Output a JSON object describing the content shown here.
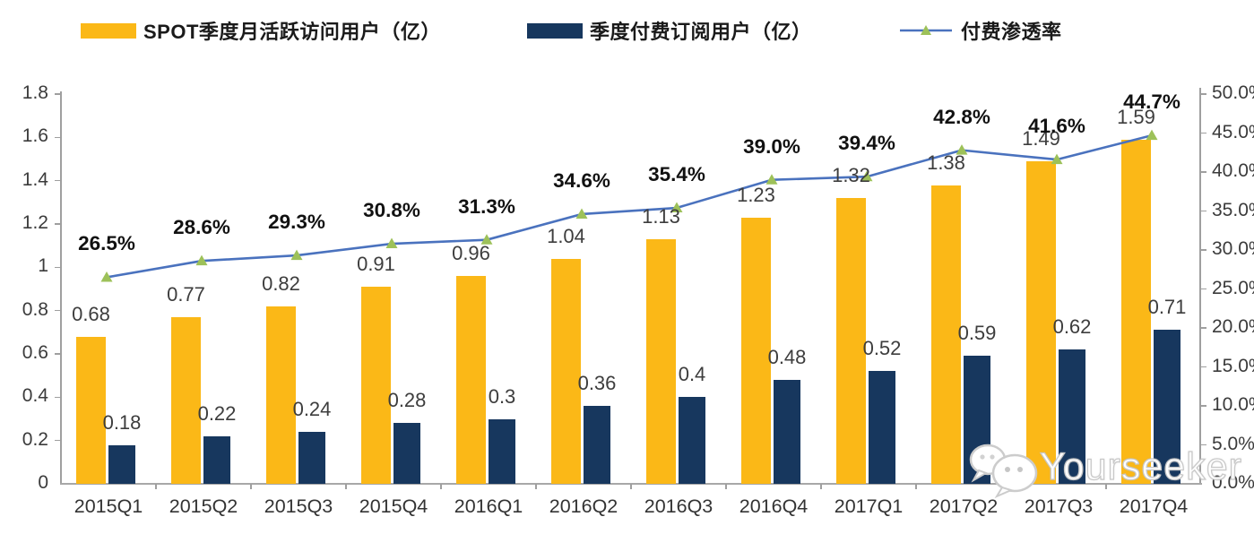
{
  "legend": {
    "items": [
      {
        "label": "SPOT季度月活跃访问用户（亿）",
        "swatch": "bar",
        "color": "#FBB817"
      },
      {
        "label": "季度付费订阅用户（亿）",
        "swatch": "bar",
        "color": "#17375E"
      },
      {
        "label": "付费渗透率",
        "swatch": "line-triangle-marker",
        "color": "#4A72BE",
        "marker_color": "#9DC159"
      }
    ]
  },
  "chart_data": {
    "type": "bar",
    "subtype": "grouped-bar-with-line-overlay",
    "categories": [
      "2015Q1",
      "2015Q2",
      "2015Q3",
      "2015Q4",
      "2016Q1",
      "2016Q2",
      "2016Q3",
      "2016Q4",
      "2017Q1",
      "2017Q2",
      "2017Q3",
      "2017Q4"
    ],
    "series": [
      {
        "name": "SPOT季度月活跃访问用户（亿）",
        "type": "bar",
        "axis": "left",
        "color": "#FBB817",
        "values": [
          0.68,
          0.77,
          0.82,
          0.91,
          0.96,
          1.04,
          1.13,
          1.23,
          1.32,
          1.38,
          1.49,
          1.59
        ],
        "labels": [
          "0.68",
          "0.77",
          "0.82",
          "0.91",
          "0.96",
          "1.04",
          "1.13",
          "1.23",
          "1.32",
          "1.38",
          "1.49",
          "1.59"
        ]
      },
      {
        "name": "季度付费订阅用户（亿）",
        "type": "bar",
        "axis": "left",
        "color": "#17375E",
        "values": [
          0.18,
          0.22,
          0.24,
          0.28,
          0.3,
          0.36,
          0.4,
          0.48,
          0.52,
          0.59,
          0.62,
          0.71
        ],
        "labels": [
          "0.18",
          "0.22",
          "0.24",
          "0.28",
          "0.3",
          "0.36",
          "0.4",
          "0.48",
          "0.52",
          "0.59",
          "0.62",
          "0.71"
        ]
      },
      {
        "name": "付费渗透率",
        "type": "line",
        "axis": "right",
        "color": "#4A72BE",
        "marker": "triangle",
        "marker_color": "#9DC159",
        "values": [
          26.5,
          28.6,
          29.3,
          30.8,
          31.3,
          34.6,
          35.4,
          39.0,
          39.4,
          42.8,
          41.6,
          44.7
        ],
        "labels": [
          "26.5%",
          "28.6%",
          "29.3%",
          "30.8%",
          "31.3%",
          "34.6%",
          "35.4%",
          "39.0%",
          "39.4%",
          "42.8%",
          "41.6%",
          "44.7%"
        ]
      }
    ],
    "left_axis": {
      "min": 0,
      "max": 1.8,
      "step": 0.2,
      "tick_labels": [
        "1.8",
        "1.6",
        "1.4",
        "1.2",
        "1",
        "0.8",
        "0.6",
        "0.4",
        "0.2",
        "0"
      ]
    },
    "right_axis": {
      "min": 0,
      "max": 50,
      "step": 5,
      "tick_labels": [
        "50.0%",
        "45.0%",
        "40.0%",
        "35.0%",
        "30.0%",
        "25.0%",
        "20.0%",
        "15.0%",
        "10.0%",
        "5.0%",
        "0.0%"
      ]
    },
    "grid": false,
    "legend_position": "top",
    "title": ""
  },
  "watermark": {
    "text": "Yourseeker",
    "icon": "wechat-chat-bubbles"
  }
}
